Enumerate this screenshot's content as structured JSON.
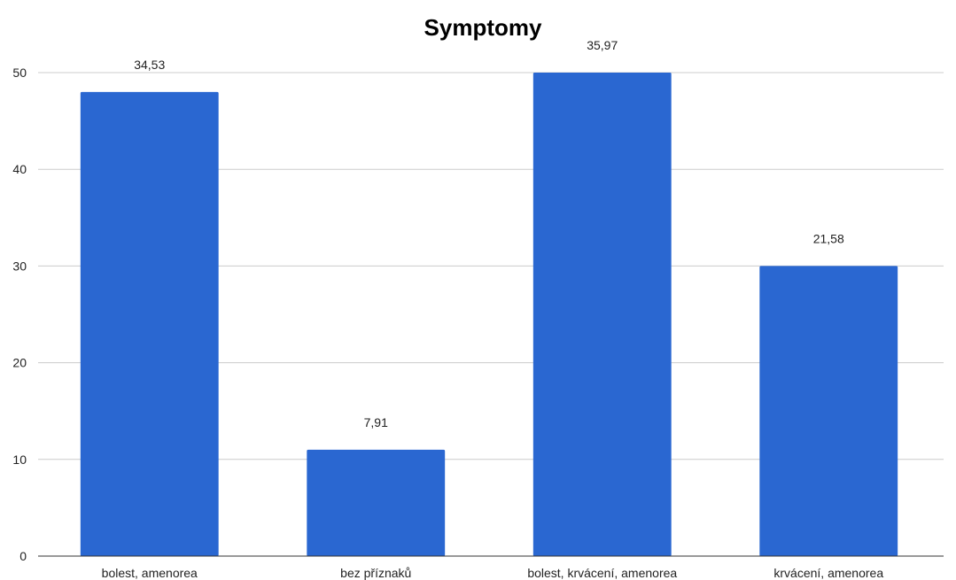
{
  "chart_data": {
    "type": "bar",
    "title": "Symptomy",
    "categories": [
      "bolest, amenorea",
      "bez příznaků",
      "bolest, krvácení, amenorea",
      "krvácení, amenorea"
    ],
    "values": [
      48,
      11,
      50,
      30
    ],
    "data_labels": [
      "34,53",
      "7,91",
      "35,97",
      "21,58"
    ],
    "ylim": [
      0,
      50
    ],
    "yticks": [
      0,
      10,
      20,
      30,
      40,
      50
    ],
    "grid": true,
    "legend": "none",
    "colors": {
      "bar": "#2a67d1",
      "grid": "#cccccc",
      "axis": "#333333"
    }
  }
}
